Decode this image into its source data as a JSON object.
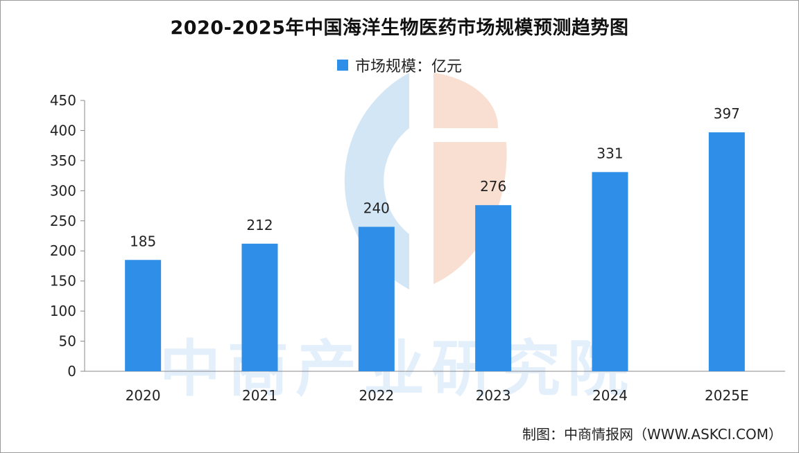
{
  "chart_data": {
    "type": "bar",
    "title": "2020-2025年中国海洋生物医药市场规模预测趋势图",
    "legend": [
      "市场规模：亿元"
    ],
    "series": [
      {
        "name": "市场规模：亿元",
        "values": [
          185,
          212,
          240,
          276,
          331,
          397
        ]
      }
    ],
    "categories": [
      "2020",
      "2021",
      "2022",
      "2023",
      "2024",
      "2025E"
    ],
    "value_labels": [
      "185",
      "212",
      "240",
      "276",
      "331",
      "397"
    ],
    "y_ticks": [
      "0",
      "50",
      "100",
      "150",
      "200",
      "250",
      "300",
      "350",
      "400",
      "450"
    ],
    "ylim": [
      0,
      450
    ],
    "xlabel": "",
    "ylabel": "",
    "grid": false,
    "legend_position": "top-center"
  },
  "source": "制图：中商情报网（WWW.ASKCI.COM）",
  "watermark": "中商产业研究院",
  "colors": {
    "bar": "#2e8ee8",
    "watermark_blue": "#9dc7ec",
    "watermark_orange": "#f5c9b3"
  }
}
